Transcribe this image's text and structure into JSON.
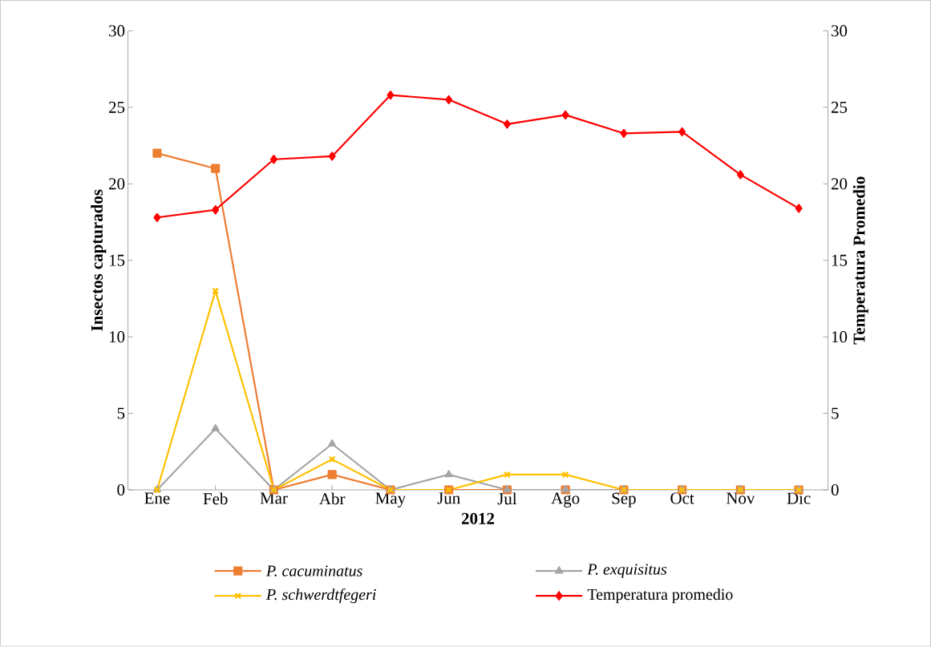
{
  "chart_data": {
    "type": "line",
    "xlabel": "2012",
    "ylabel": "Insectos capturados",
    "y2label": "Temperatura  Promedio",
    "categories": [
      "Ene",
      "Feb",
      "Mar",
      "Abr",
      "May",
      "Jun",
      "Jul",
      "Ago",
      "Sep",
      "Oct",
      "Nov",
      "Dic"
    ],
    "series": [
      {
        "name": "*P. cacuminatus*",
        "color": "#ed7d31",
        "marker": "square",
        "values": [
          22,
          21,
          0,
          1,
          0,
          0,
          0,
          0,
          0,
          0,
          0,
          0
        ]
      },
      {
        "name": "*P. exquisitus*",
        "color": "#a5a5a5",
        "marker": "triangle",
        "values": [
          0,
          4,
          0,
          3,
          0,
          1,
          0,
          0,
          0,
          0,
          0,
          0
        ]
      },
      {
        "name": "*P. schwerdtfegeri*",
        "color": "#ffc000",
        "marker": "cross",
        "values": [
          0,
          13,
          0,
          2,
          0,
          0,
          1,
          1,
          0,
          0,
          0,
          0
        ]
      },
      {
        "name": "Temperatura promedio",
        "color": "#ff0000",
        "marker": "diamond",
        "axis": "y2",
        "values": [
          17.8,
          18.3,
          21.6,
          21.8,
          25.8,
          25.5,
          23.9,
          24.5,
          23.3,
          23.4,
          20.6,
          18.4
        ]
      }
    ],
    "ylim": [
      0,
      30
    ],
    "yticks": [
      0,
      5,
      10,
      15,
      20,
      25,
      30
    ],
    "y2lim": [
      0,
      30
    ],
    "y2ticks": [
      0,
      5,
      10,
      15,
      20,
      25,
      30
    ],
    "grid": false,
    "legend": "bottom",
    "line_style": "solid"
  }
}
